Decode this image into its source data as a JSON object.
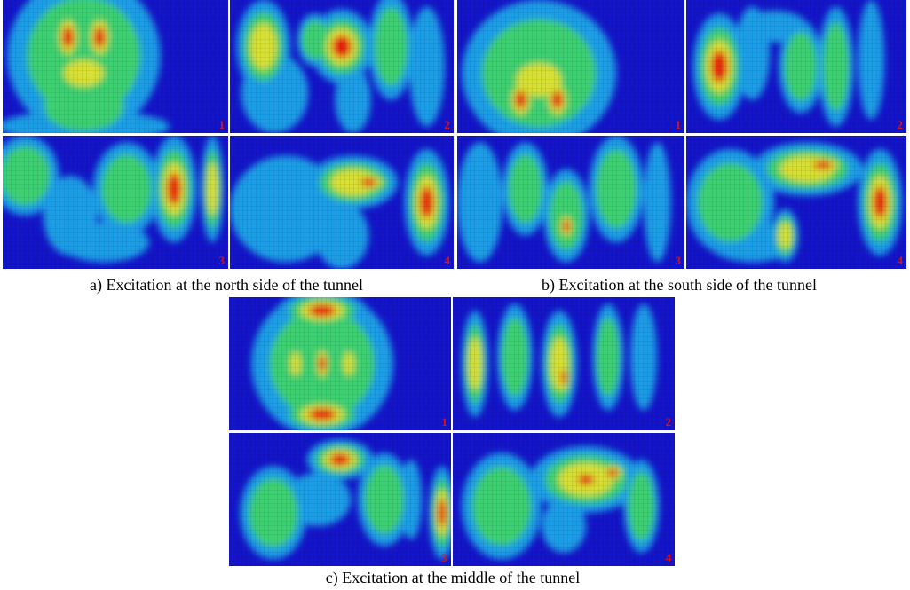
{
  "figures": [
    {
      "caption": "a) Excitation at the north side of the tunnel",
      "panels": [
        {
          "label": "1"
        },
        {
          "label": "2"
        },
        {
          "label": "3"
        },
        {
          "label": "4"
        }
      ]
    },
    {
      "caption": "b) Excitation at the south side of the tunnel",
      "panels": [
        {
          "label": "1"
        },
        {
          "label": "2"
        },
        {
          "label": "3"
        },
        {
          "label": "4"
        }
      ]
    },
    {
      "caption": "c) Excitation at the middle of the tunnel",
      "panels": [
        {
          "label": "1"
        },
        {
          "label": "2"
        },
        {
          "label": "3"
        },
        {
          "label": "4"
        }
      ]
    }
  ]
}
